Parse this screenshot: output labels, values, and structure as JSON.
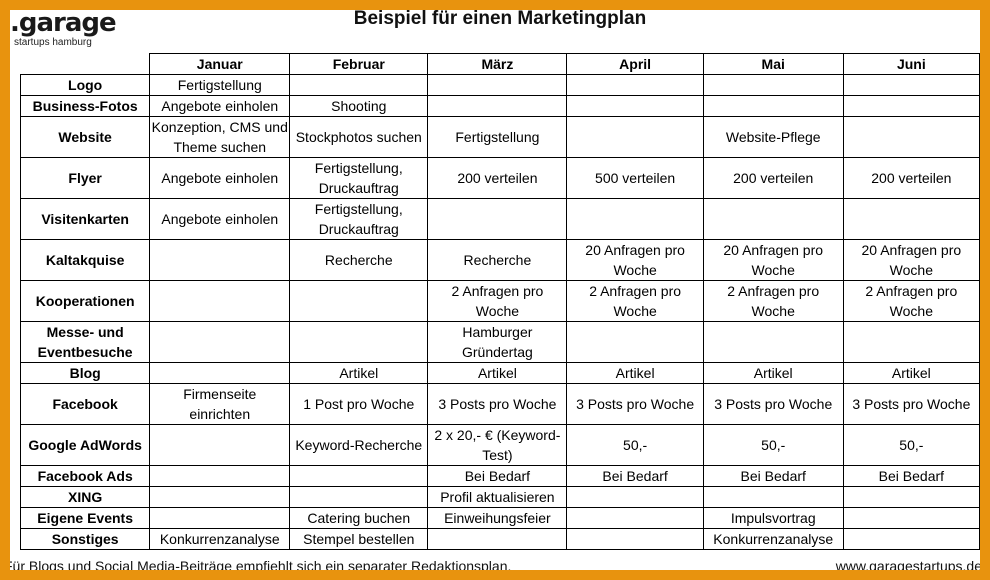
{
  "header": {
    "logo_text": ".garage",
    "logo_sub": "startups hamburg",
    "title": "Beispiel für einen Marketingplan"
  },
  "table": {
    "columns": [
      "Januar",
      "Februar",
      "März",
      "April",
      "Mai",
      "Juni"
    ],
    "rows": [
      {
        "label": "Logo",
        "cells": [
          "Fertigstellung",
          "",
          "",
          "",
          "",
          ""
        ]
      },
      {
        "label": "Business-Fotos",
        "cells": [
          "Angebote einholen",
          "Shooting",
          "",
          "",
          "",
          ""
        ]
      },
      {
        "label": "Website",
        "cells": [
          "Konzeption, CMS und Theme suchen",
          "Stockphotos suchen",
          "Fertigstellung",
          "",
          "Website-Pflege",
          ""
        ]
      },
      {
        "label": "Flyer",
        "cells": [
          "Angebote einholen",
          "Fertigstellung, Druckauftrag",
          "200 verteilen",
          "500 verteilen",
          "200 verteilen",
          "200 verteilen"
        ]
      },
      {
        "label": "Visitenkarten",
        "cells": [
          "Angebote einholen",
          "Fertigstellung, Druckauftrag",
          "",
          "",
          "",
          ""
        ]
      },
      {
        "label": "Kaltakquise",
        "cells": [
          "",
          "Recherche",
          "Recherche",
          "20 Anfragen pro Woche",
          "20 Anfragen pro Woche",
          "20 Anfragen pro Woche"
        ]
      },
      {
        "label": "Kooperationen",
        "cells": [
          "",
          "",
          "2 Anfragen pro Woche",
          "2 Anfragen pro Woche",
          "2 Anfragen pro Woche",
          "2 Anfragen pro Woche"
        ]
      },
      {
        "label": "Messe- und Eventbesuche",
        "cells": [
          "",
          "",
          "Hamburger Gründertag",
          "",
          "",
          ""
        ]
      },
      {
        "label": "Blog",
        "cells": [
          "",
          "Artikel",
          "Artikel",
          "Artikel",
          "Artikel",
          "Artikel"
        ]
      },
      {
        "label": "Facebook",
        "cells": [
          "Firmenseite einrichten",
          "1 Post pro Woche",
          "3 Posts pro Woche",
          "3 Posts pro Woche",
          "3 Posts pro Woche",
          "3 Posts pro Woche"
        ]
      },
      {
        "label": "Google AdWords",
        "cells": [
          "",
          "Keyword-Recherche",
          "2 x 20,- € (Keyword-Test)",
          "50,-",
          "50,-",
          "50,-"
        ]
      },
      {
        "label": "Facebook Ads",
        "cells": [
          "",
          "",
          "Bei Bedarf",
          "Bei Bedarf",
          "Bei Bedarf",
          "Bei Bedarf"
        ]
      },
      {
        "label": "XING",
        "cells": [
          "",
          "",
          "Profil aktualisieren",
          "",
          "",
          ""
        ]
      },
      {
        "label": "Eigene Events",
        "cells": [
          "",
          "Catering buchen",
          "Einweihungsfeier",
          "",
          "Impulsvortrag",
          ""
        ]
      },
      {
        "label": "Sonstiges",
        "cells": [
          "Konkurrenzanalyse",
          "Stempel bestellen",
          "",
          "",
          "Konkurrenzanalyse",
          ""
        ]
      }
    ]
  },
  "footer": {
    "note": "Für Blogs und Social Media-Beiträge empfiehlt sich ein separater Redaktionsplan.",
    "url": "www.garagestartups.de"
  },
  "colors": {
    "border": "#E8930E"
  }
}
